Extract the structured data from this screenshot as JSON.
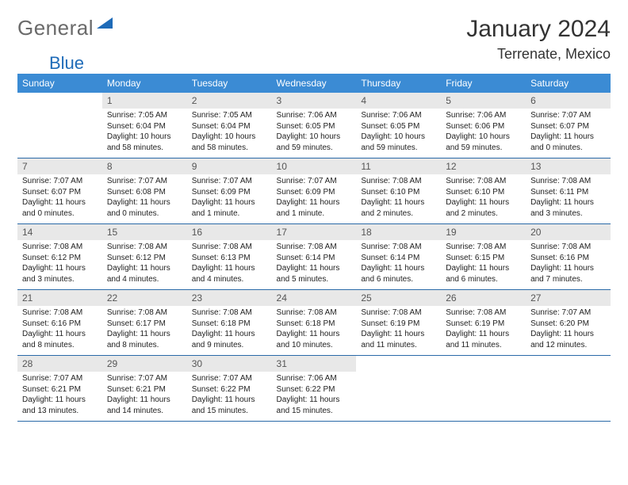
{
  "logo": {
    "word1": "General",
    "word2": "Blue"
  },
  "title": "January 2024",
  "location": "Terrenate, Mexico",
  "colors": {
    "header_bg": "#3b8bd4",
    "header_text": "#ffffff",
    "daynum_bg": "#e8e8e8",
    "daynum_text": "#555555",
    "rule": "#2a6aa8",
    "logo_gray": "#6a6a6a",
    "logo_blue": "#1e6bb8"
  },
  "fonts": {
    "title_size": 30,
    "location_size": 18,
    "dayhead_size": 12,
    "daynum_size": 12,
    "body_size": 10
  },
  "dayNames": [
    "Sunday",
    "Monday",
    "Tuesday",
    "Wednesday",
    "Thursday",
    "Friday",
    "Saturday"
  ],
  "weeks": [
    [
      {
        "n": "",
        "sr": "",
        "ss": "",
        "dl": ""
      },
      {
        "n": "1",
        "sr": "Sunrise: 7:05 AM",
        "ss": "Sunset: 6:04 PM",
        "dl": "Daylight: 10 hours and 58 minutes."
      },
      {
        "n": "2",
        "sr": "Sunrise: 7:05 AM",
        "ss": "Sunset: 6:04 PM",
        "dl": "Daylight: 10 hours and 58 minutes."
      },
      {
        "n": "3",
        "sr": "Sunrise: 7:06 AM",
        "ss": "Sunset: 6:05 PM",
        "dl": "Daylight: 10 hours and 59 minutes."
      },
      {
        "n": "4",
        "sr": "Sunrise: 7:06 AM",
        "ss": "Sunset: 6:05 PM",
        "dl": "Daylight: 10 hours and 59 minutes."
      },
      {
        "n": "5",
        "sr": "Sunrise: 7:06 AM",
        "ss": "Sunset: 6:06 PM",
        "dl": "Daylight: 10 hours and 59 minutes."
      },
      {
        "n": "6",
        "sr": "Sunrise: 7:07 AM",
        "ss": "Sunset: 6:07 PM",
        "dl": "Daylight: 11 hours and 0 minutes."
      }
    ],
    [
      {
        "n": "7",
        "sr": "Sunrise: 7:07 AM",
        "ss": "Sunset: 6:07 PM",
        "dl": "Daylight: 11 hours and 0 minutes."
      },
      {
        "n": "8",
        "sr": "Sunrise: 7:07 AM",
        "ss": "Sunset: 6:08 PM",
        "dl": "Daylight: 11 hours and 0 minutes."
      },
      {
        "n": "9",
        "sr": "Sunrise: 7:07 AM",
        "ss": "Sunset: 6:09 PM",
        "dl": "Daylight: 11 hours and 1 minute."
      },
      {
        "n": "10",
        "sr": "Sunrise: 7:07 AM",
        "ss": "Sunset: 6:09 PM",
        "dl": "Daylight: 11 hours and 1 minute."
      },
      {
        "n": "11",
        "sr": "Sunrise: 7:08 AM",
        "ss": "Sunset: 6:10 PM",
        "dl": "Daylight: 11 hours and 2 minutes."
      },
      {
        "n": "12",
        "sr": "Sunrise: 7:08 AM",
        "ss": "Sunset: 6:10 PM",
        "dl": "Daylight: 11 hours and 2 minutes."
      },
      {
        "n": "13",
        "sr": "Sunrise: 7:08 AM",
        "ss": "Sunset: 6:11 PM",
        "dl": "Daylight: 11 hours and 3 minutes."
      }
    ],
    [
      {
        "n": "14",
        "sr": "Sunrise: 7:08 AM",
        "ss": "Sunset: 6:12 PM",
        "dl": "Daylight: 11 hours and 3 minutes."
      },
      {
        "n": "15",
        "sr": "Sunrise: 7:08 AM",
        "ss": "Sunset: 6:12 PM",
        "dl": "Daylight: 11 hours and 4 minutes."
      },
      {
        "n": "16",
        "sr": "Sunrise: 7:08 AM",
        "ss": "Sunset: 6:13 PM",
        "dl": "Daylight: 11 hours and 4 minutes."
      },
      {
        "n": "17",
        "sr": "Sunrise: 7:08 AM",
        "ss": "Sunset: 6:14 PM",
        "dl": "Daylight: 11 hours and 5 minutes."
      },
      {
        "n": "18",
        "sr": "Sunrise: 7:08 AM",
        "ss": "Sunset: 6:14 PM",
        "dl": "Daylight: 11 hours and 6 minutes."
      },
      {
        "n": "19",
        "sr": "Sunrise: 7:08 AM",
        "ss": "Sunset: 6:15 PM",
        "dl": "Daylight: 11 hours and 6 minutes."
      },
      {
        "n": "20",
        "sr": "Sunrise: 7:08 AM",
        "ss": "Sunset: 6:16 PM",
        "dl": "Daylight: 11 hours and 7 minutes."
      }
    ],
    [
      {
        "n": "21",
        "sr": "Sunrise: 7:08 AM",
        "ss": "Sunset: 6:16 PM",
        "dl": "Daylight: 11 hours and 8 minutes."
      },
      {
        "n": "22",
        "sr": "Sunrise: 7:08 AM",
        "ss": "Sunset: 6:17 PM",
        "dl": "Daylight: 11 hours and 8 minutes."
      },
      {
        "n": "23",
        "sr": "Sunrise: 7:08 AM",
        "ss": "Sunset: 6:18 PM",
        "dl": "Daylight: 11 hours and 9 minutes."
      },
      {
        "n": "24",
        "sr": "Sunrise: 7:08 AM",
        "ss": "Sunset: 6:18 PM",
        "dl": "Daylight: 11 hours and 10 minutes."
      },
      {
        "n": "25",
        "sr": "Sunrise: 7:08 AM",
        "ss": "Sunset: 6:19 PM",
        "dl": "Daylight: 11 hours and 11 minutes."
      },
      {
        "n": "26",
        "sr": "Sunrise: 7:08 AM",
        "ss": "Sunset: 6:19 PM",
        "dl": "Daylight: 11 hours and 11 minutes."
      },
      {
        "n": "27",
        "sr": "Sunrise: 7:07 AM",
        "ss": "Sunset: 6:20 PM",
        "dl": "Daylight: 11 hours and 12 minutes."
      }
    ],
    [
      {
        "n": "28",
        "sr": "Sunrise: 7:07 AM",
        "ss": "Sunset: 6:21 PM",
        "dl": "Daylight: 11 hours and 13 minutes."
      },
      {
        "n": "29",
        "sr": "Sunrise: 7:07 AM",
        "ss": "Sunset: 6:21 PM",
        "dl": "Daylight: 11 hours and 14 minutes."
      },
      {
        "n": "30",
        "sr": "Sunrise: 7:07 AM",
        "ss": "Sunset: 6:22 PM",
        "dl": "Daylight: 11 hours and 15 minutes."
      },
      {
        "n": "31",
        "sr": "Sunrise: 7:06 AM",
        "ss": "Sunset: 6:22 PM",
        "dl": "Daylight: 11 hours and 15 minutes."
      },
      {
        "n": "",
        "sr": "",
        "ss": "",
        "dl": ""
      },
      {
        "n": "",
        "sr": "",
        "ss": "",
        "dl": ""
      },
      {
        "n": "",
        "sr": "",
        "ss": "",
        "dl": ""
      }
    ]
  ]
}
